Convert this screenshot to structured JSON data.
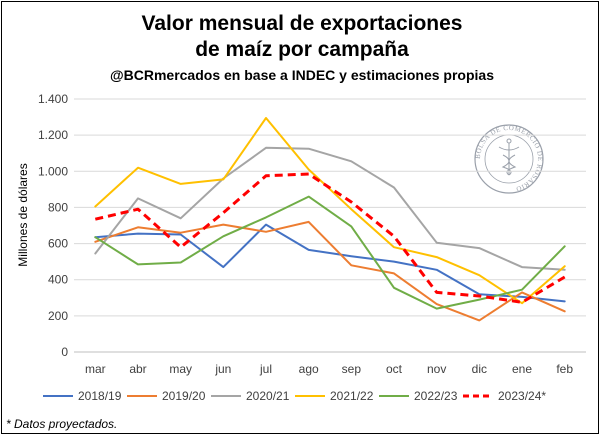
{
  "chart_data": {
    "type": "line",
    "title_line1": "Valor mensual de exportaciones",
    "title_line2": "de maíz por campaña",
    "subtitle": "@BCRmercados en base a INDEC y estimaciones propias",
    "ylabel": "Millones de dólares",
    "xlabel": "",
    "ylim": [
      0,
      1400
    ],
    "yticks": [
      0,
      200,
      400,
      600,
      800,
      1000,
      1200,
      1400
    ],
    "ytick_labels": [
      "0",
      "200",
      "400",
      "600",
      "800",
      "1.000",
      "1.200",
      "1.400"
    ],
    "categories": [
      "mar",
      "abr",
      "may",
      "jun",
      "jul",
      "ago",
      "sep",
      "oct",
      "nov",
      "dic",
      "ene",
      "feb"
    ],
    "grid": "horizontal",
    "legend_position": "bottom",
    "series": [
      {
        "name": "2018/19",
        "color": "#4472c4",
        "dashed": false,
        "values": [
          635,
          655,
          650,
          470,
          705,
          565,
          530,
          500,
          455,
          320,
          305,
          280
        ]
      },
      {
        "name": "2019/20",
        "color": "#ed7d31",
        "dashed": false,
        "values": [
          610,
          690,
          660,
          705,
          665,
          720,
          480,
          435,
          265,
          175,
          330,
          225
        ]
      },
      {
        "name": "2020/21",
        "color": "#a5a5a5",
        "dashed": false,
        "values": [
          545,
          850,
          740,
          960,
          1130,
          1125,
          1055,
          910,
          605,
          575,
          470,
          455
        ]
      },
      {
        "name": "2021/22",
        "color": "#ffc000",
        "dashed": false,
        "values": [
          805,
          1020,
          930,
          955,
          1295,
          1010,
          790,
          580,
          525,
          425,
          270,
          475
        ]
      },
      {
        "name": "2022/23",
        "color": "#70ad47",
        "dashed": false,
        "values": [
          635,
          485,
          495,
          640,
          745,
          860,
          695,
          355,
          240,
          290,
          345,
          585
        ]
      },
      {
        "name": "2023/24*",
        "color": "#ff0000",
        "dashed": true,
        "values": [
          735,
          790,
          580,
          770,
          975,
          985,
          830,
          640,
          330,
          310,
          275,
          415
        ]
      }
    ],
    "footnote": "* Datos proyectados."
  },
  "seal": {
    "text": "BOLSA DE COMERCIO DE ROSARIO",
    "color": "#9aa0aa"
  }
}
